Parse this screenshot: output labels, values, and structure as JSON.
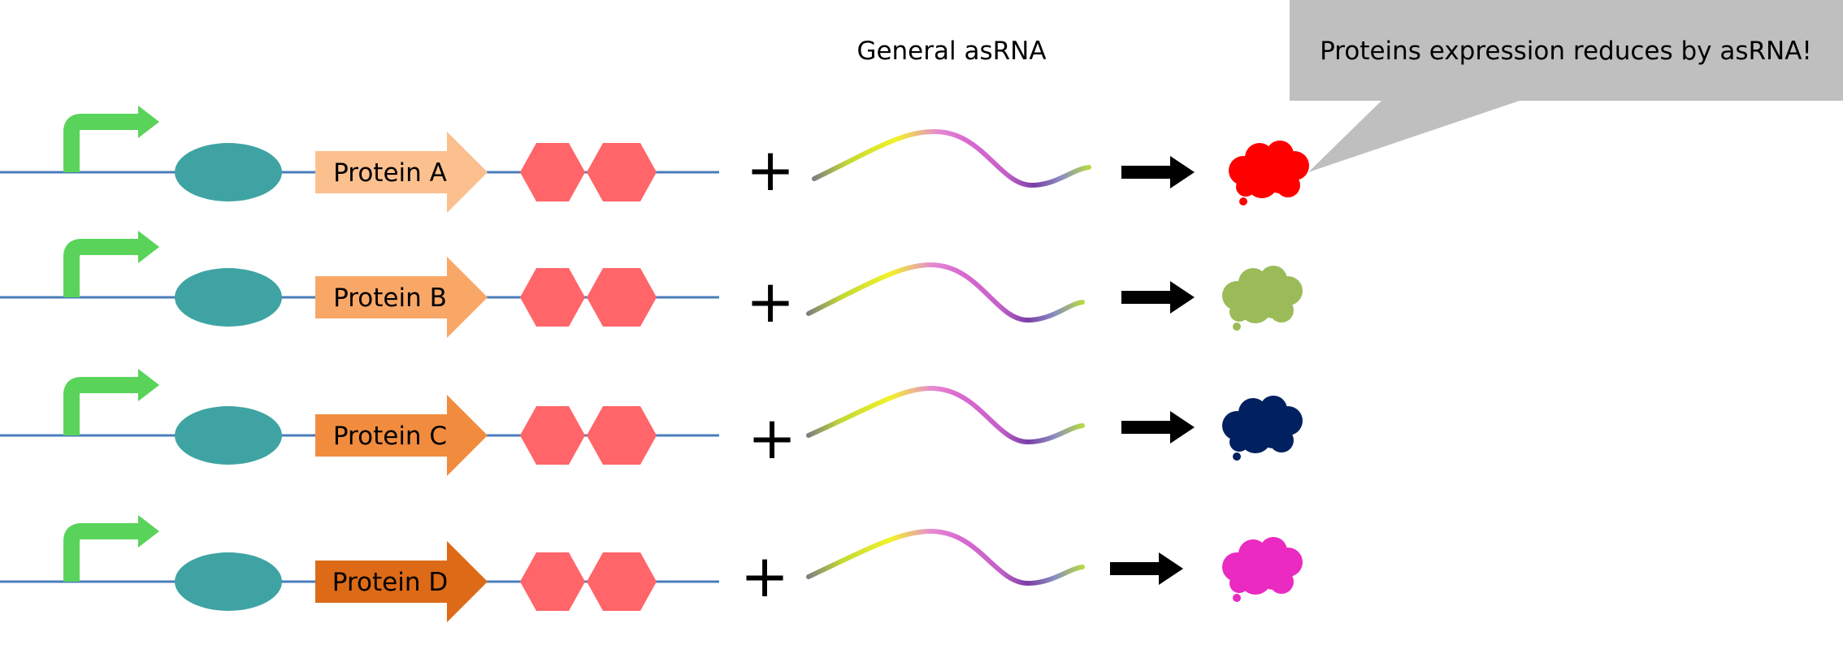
{
  "header": {
    "asrna_label": "General asRNA"
  },
  "callout": {
    "text": "Proteins expression reduces by asRNA!",
    "fill": "#bfbfbf"
  },
  "colors": {
    "dna_line": "#4a7ebb",
    "promoter": "#5ad35a",
    "rbs": "#3fa3a3",
    "terminator": "#ff6569",
    "arrow": "#000000"
  },
  "constructs": [
    {
      "protein_label": "Protein A",
      "cds_color": "#fcc08f",
      "product_color": "#ff0000",
      "plus": "+"
    },
    {
      "protein_label": "Protein B",
      "cds_color": "#f9a767",
      "product_color": "#9bbb59",
      "plus": "+"
    },
    {
      "protein_label": "Protein C",
      "cds_color": "#f18c3f",
      "product_color": "#00205f",
      "plus": "+"
    },
    {
      "protein_label": "Protein D",
      "cds_color": "#dc6a17",
      "product_color": "#ea2ac0",
      "plus": "+"
    }
  ]
}
